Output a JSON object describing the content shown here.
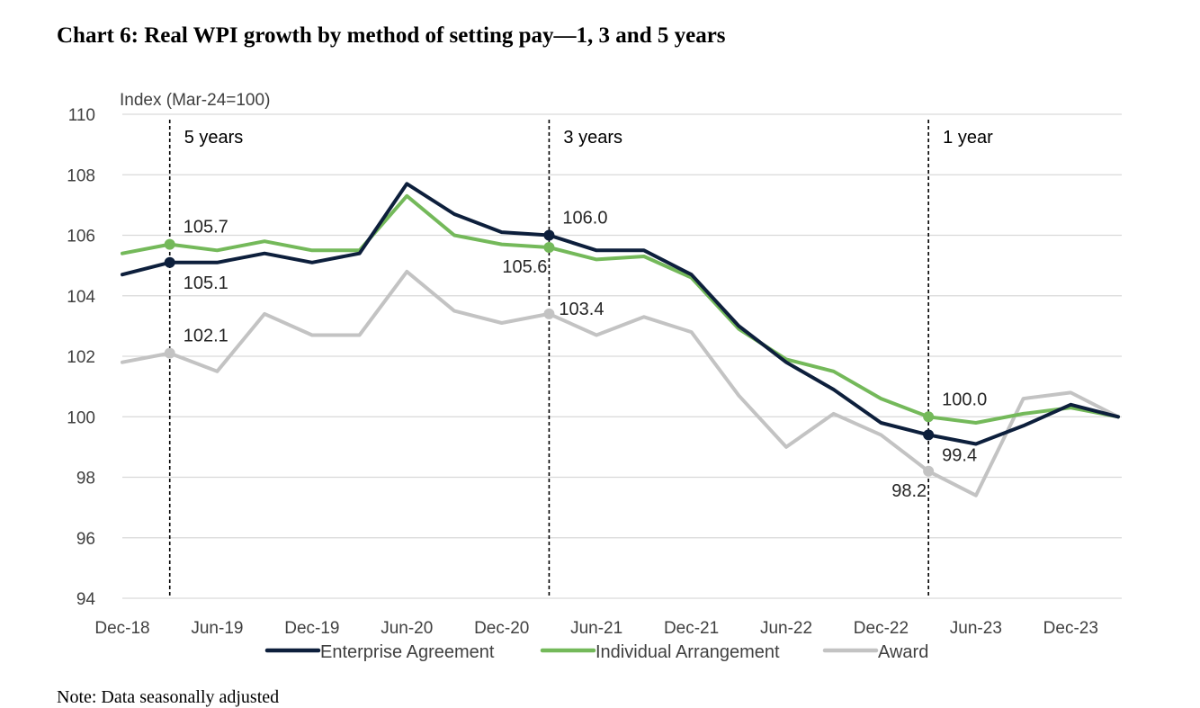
{
  "title": "Chart 6: Real WPI growth by method of setting pay—1, 3 and 5 years",
  "note": "Note: Data seasonally adjusted",
  "chart_data": {
    "type": "line",
    "ylabel": "Index (Mar-24=100)",
    "ylim": [
      94,
      110
    ],
    "yticks": [
      94,
      96,
      98,
      100,
      102,
      104,
      106,
      108,
      110
    ],
    "x_tick_labels": [
      "Dec-18",
      "Jun-19",
      "Dec-19",
      "Jun-20",
      "Dec-20",
      "Jun-21",
      "Dec-21",
      "Jun-22",
      "Dec-22",
      "Jun-23",
      "Dec-23"
    ],
    "x": [
      "Dec-18",
      "Mar-19",
      "Jun-19",
      "Sep-19",
      "Dec-19",
      "Mar-20",
      "Jun-20",
      "Sep-20",
      "Dec-20",
      "Mar-21",
      "Jun-21",
      "Sep-21",
      "Dec-21",
      "Mar-22",
      "Jun-22",
      "Sep-22",
      "Dec-22",
      "Mar-23",
      "Jun-23",
      "Sep-23",
      "Dec-23",
      "Mar-24"
    ],
    "grid": "horizontal",
    "legend_position": "bottom",
    "series": [
      {
        "name": "Enterprise Agreement",
        "color": "#0d1f3c",
        "values": [
          104.7,
          105.1,
          105.1,
          105.4,
          105.1,
          105.4,
          107.7,
          106.7,
          106.1,
          106.0,
          105.5,
          105.5,
          104.7,
          103.0,
          101.8,
          100.9,
          99.8,
          99.4,
          99.1,
          99.7,
          100.4,
          100.0
        ]
      },
      {
        "name": "Individual Arrangement",
        "color": "#74b95a",
        "values": [
          105.4,
          105.7,
          105.5,
          105.8,
          105.5,
          105.5,
          107.3,
          106.0,
          105.7,
          105.6,
          105.2,
          105.3,
          104.6,
          102.9,
          101.9,
          101.5,
          100.6,
          100.0,
          99.8,
          100.1,
          100.3,
          100.0
        ]
      },
      {
        "name": "Award",
        "color": "#c3c3c3",
        "values": [
          101.8,
          102.1,
          101.5,
          103.4,
          102.7,
          102.7,
          104.8,
          103.5,
          103.1,
          103.4,
          102.7,
          103.3,
          102.8,
          100.7,
          99.0,
          100.1,
          99.4,
          98.2,
          97.4,
          100.6,
          100.8,
          100.0
        ]
      }
    ],
    "markers": [
      {
        "series": 0,
        "index": 1,
        "label": "105.1",
        "anchor": "below-right"
      },
      {
        "series": 1,
        "index": 1,
        "label": "105.7",
        "anchor": "above-right"
      },
      {
        "series": 2,
        "index": 1,
        "label": "102.1",
        "anchor": "above-right"
      },
      {
        "series": 0,
        "index": 9,
        "label": "106.0",
        "anchor": "above-right"
      },
      {
        "series": 1,
        "index": 9,
        "label": "105.6",
        "anchor": "below-left"
      },
      {
        "series": 2,
        "index": 9,
        "label": "103.4",
        "anchor": "right"
      },
      {
        "series": 1,
        "index": 17,
        "label": "100.0",
        "anchor": "above-right"
      },
      {
        "series": 0,
        "index": 17,
        "label": "99.4",
        "anchor": "below-right"
      },
      {
        "series": 2,
        "index": 17,
        "label": "98.2",
        "anchor": "below-left"
      }
    ],
    "periods": [
      {
        "index": 1,
        "label": "5 years"
      },
      {
        "index": 9,
        "label": "3 years"
      },
      {
        "index": 17,
        "label": "1 year"
      }
    ]
  }
}
